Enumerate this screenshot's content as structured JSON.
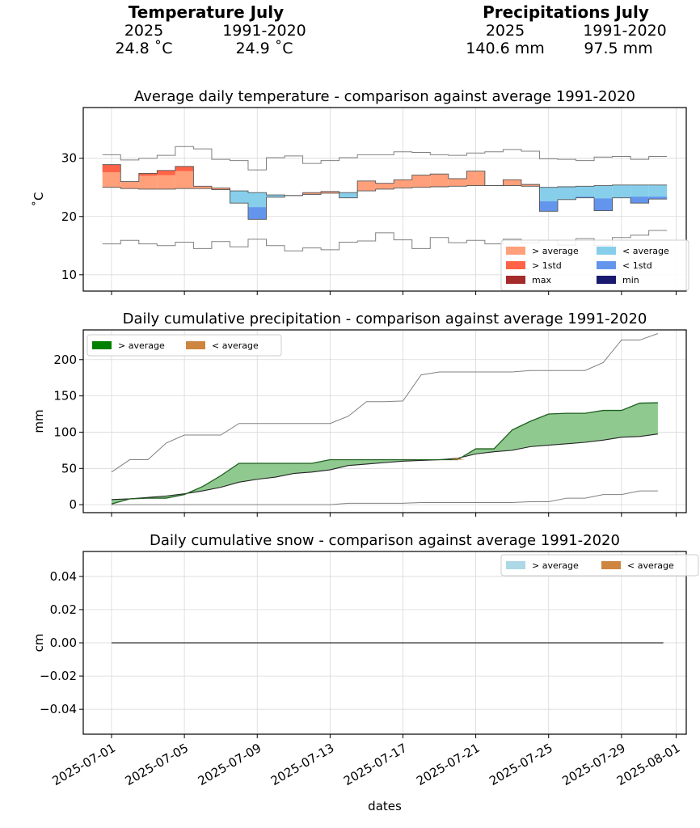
{
  "summary": {
    "temperature": {
      "title": "Temperature July",
      "col1_label": "2025",
      "col2_label": "1991-2020",
      "col1_value": "24.8 ˚C",
      "col2_value": "24.9 ˚C"
    },
    "precipitation": {
      "title": "Precipitations July",
      "col1_label": "2025",
      "col2_label": "1991-2020",
      "col1_value": "140.6 mm",
      "col2_value": "97.5 mm"
    }
  },
  "colors": {
    "above_avg_temp": "#FFA07A",
    "above_1std_temp": "#FF6347",
    "max_temp": "#A52A2A",
    "below_avg_temp": "#87CEEB",
    "below_1std_temp": "#6495ED",
    "min_temp": "#191970",
    "precip_above": "#008000",
    "precip_below": "#CD853F",
    "snow_above": "#ADD8E6",
    "snow_below": "#CD853F",
    "stat_line": "#808080"
  },
  "x_axis": {
    "xlabel": "dates",
    "tick_labels": [
      "2025-07-01",
      "2025-07-05",
      "2025-07-09",
      "2025-07-13",
      "2025-07-17",
      "2025-07-21",
      "2025-07-25",
      "2025-07-29",
      "2025-08-01"
    ]
  },
  "chart_data": [
    {
      "type": "area",
      "title": "Average daily temperature - comparison against average 1991-2020",
      "ylabel": "˚C",
      "ylim": [
        7.2,
        38.7
      ],
      "yticks": [
        10,
        20,
        30
      ],
      "grid": true,
      "legend_placement": "lower-right",
      "legend": [
        {
          "label": "> average",
          "color_key": "above_avg_temp"
        },
        {
          "label": "< average",
          "color_key": "below_avg_temp"
        },
        {
          "label": "> 1std",
          "color_key": "above_1std_temp"
        },
        {
          "label": "< 1std",
          "color_key": "below_1std_temp"
        },
        {
          "label": "max",
          "color_key": "max_temp"
        },
        {
          "label": "min",
          "color_key": "min_temp"
        }
      ],
      "x": [
        "2025-07-01",
        "2025-07-02",
        "2025-07-03",
        "2025-07-04",
        "2025-07-05",
        "2025-07-06",
        "2025-07-07",
        "2025-07-08",
        "2025-07-09",
        "2025-07-10",
        "2025-07-11",
        "2025-07-12",
        "2025-07-13",
        "2025-07-14",
        "2025-07-15",
        "2025-07-16",
        "2025-07-17",
        "2025-07-18",
        "2025-07-19",
        "2025-07-20",
        "2025-07-21",
        "2025-07-22",
        "2025-07-23",
        "2025-07-24",
        "2025-07-25",
        "2025-07-26",
        "2025-07-27",
        "2025-07-28",
        "2025-07-29",
        "2025-07-30",
        "2025-07-31"
      ],
      "series": [
        {
          "name": "temp_2025",
          "values": [
            28.9,
            26.0,
            27.4,
            27.9,
            28.6,
            25.2,
            24.9,
            22.3,
            19.5,
            23.3,
            23.6,
            24.1,
            24.3,
            23.2,
            26.1,
            25.7,
            26.3,
            27.1,
            27.3,
            26.5,
            27.8,
            25.3,
            26.3,
            25.5,
            20.9,
            22.9,
            23.2,
            21.0,
            23.2,
            22.3,
            23.0
          ],
          "above_1std": [
            27.6,
            null,
            27.0,
            27.1,
            27.8,
            null,
            null,
            null,
            21.6,
            null,
            null,
            null,
            null,
            null,
            null,
            null,
            null,
            null,
            null,
            null,
            null,
            null,
            null,
            null,
            22.6,
            null,
            23.4,
            23.1,
            null,
            23.4,
            23.4
          ]
        },
        {
          "name": "avg_1991_2020",
          "values": [
            25.0,
            24.8,
            24.7,
            24.7,
            24.8,
            24.8,
            24.6,
            24.4,
            24.1,
            23.7,
            23.6,
            23.8,
            24.0,
            24.1,
            24.4,
            24.7,
            24.9,
            25.0,
            25.1,
            25.2,
            25.3,
            25.3,
            25.3,
            25.2,
            25.0,
            25.1,
            25.2,
            25.3,
            25.4,
            25.4,
            25.4
          ]
        },
        {
          "name": "max_1991_2020",
          "values": [
            30.6,
            29.7,
            30.0,
            30.5,
            32.0,
            31.6,
            29.8,
            29.6,
            28.0,
            30.1,
            30.4,
            29.1,
            29.6,
            30.1,
            30.6,
            30.6,
            31.1,
            31.0,
            30.6,
            30.5,
            30.9,
            31.1,
            31.5,
            31.2,
            29.9,
            29.8,
            29.6,
            30.2,
            30.3,
            29.8,
            30.3
          ]
        },
        {
          "name": "min_1991_2020",
          "values": [
            15.3,
            15.9,
            15.3,
            15.0,
            15.6,
            14.5,
            15.7,
            14.8,
            16.1,
            15.0,
            14.1,
            14.6,
            14.3,
            15.6,
            15.8,
            17.2,
            16.0,
            14.5,
            16.4,
            15.5,
            15.9,
            15.3,
            16.1,
            15.5,
            15.9,
            15.1,
            16.2,
            15.0,
            16.4,
            16.8,
            17.6
          ]
        }
      ]
    },
    {
      "type": "area",
      "title": "Daily cumulative precipitation - comparison against average 1991-2020",
      "ylabel": "mm",
      "ylim": [
        -11,
        241
      ],
      "yticks": [
        0,
        50,
        100,
        150,
        200
      ],
      "grid": true,
      "legend_placement": "top-left",
      "legend": [
        {
          "label": "> average",
          "color_key": "precip_above"
        },
        {
          "label": "< average",
          "color_key": "precip_below"
        }
      ],
      "x": [
        "2025-07-01",
        "2025-07-02",
        "2025-07-03",
        "2025-07-04",
        "2025-07-05",
        "2025-07-06",
        "2025-07-07",
        "2025-07-08",
        "2025-07-09",
        "2025-07-10",
        "2025-07-11",
        "2025-07-12",
        "2025-07-13",
        "2025-07-14",
        "2025-07-15",
        "2025-07-16",
        "2025-07-17",
        "2025-07-18",
        "2025-07-19",
        "2025-07-20",
        "2025-07-21",
        "2025-07-22",
        "2025-07-23",
        "2025-07-24",
        "2025-07-25",
        "2025-07-26",
        "2025-07-27",
        "2025-07-28",
        "2025-07-29",
        "2025-07-30",
        "2025-07-31"
      ],
      "series": [
        {
          "name": "cum_2025",
          "values": [
            1,
            8,
            9,
            9,
            14,
            25,
            40,
            57,
            57,
            57,
            57,
            57,
            62,
            62,
            62,
            62,
            62,
            62,
            62,
            62,
            77,
            77,
            103,
            115,
            125,
            126,
            126,
            130,
            130,
            140,
            140.6
          ]
        },
        {
          "name": "cum_avg_1991_2020",
          "values": [
            7,
            8,
            10,
            12,
            15,
            19,
            24,
            31,
            35,
            38,
            43,
            45,
            48,
            54,
            56,
            58,
            60,
            61,
            62,
            64,
            70,
            73,
            75,
            80,
            82,
            84,
            86,
            89,
            93,
            94,
            97.5
          ]
        },
        {
          "name": "cum_max_1991_2020",
          "values": [
            45,
            62,
            62,
            85,
            96,
            96,
            96,
            112,
            112,
            112,
            112,
            112,
            112,
            122,
            142,
            142,
            143,
            179,
            183,
            183,
            183,
            183,
            183,
            185,
            185,
            185,
            185,
            196,
            227,
            227,
            236
          ]
        },
        {
          "name": "cum_min_1991_2020",
          "values": [
            0,
            0,
            0,
            0,
            0,
            0,
            0,
            0,
            0,
            0,
            0,
            0,
            0,
            2,
            2,
            2,
            2,
            3,
            3,
            3,
            3,
            3,
            3,
            4,
            4,
            9,
            9,
            14,
            14,
            19,
            19
          ]
        }
      ]
    },
    {
      "type": "area",
      "title": "Daily cumulative snow - comparison against average 1991-2020",
      "ylabel": "cm",
      "ylim": [
        -0.055,
        0.055
      ],
      "yticks": [
        -0.04,
        -0.02,
        0.0,
        0.02,
        0.04
      ],
      "ytick_labels": [
        "−0.04",
        "−0.02",
        "0.00",
        "0.02",
        "0.04"
      ],
      "grid": true,
      "legend_placement": "top-right",
      "legend": [
        {
          "label": "> average",
          "color_key": "snow_above"
        },
        {
          "label": "< average",
          "color_key": "snow_below"
        }
      ],
      "x": [
        "2025-07-01",
        "2025-07-31"
      ],
      "series": [
        {
          "name": "cum_2025",
          "values": [
            0,
            0
          ]
        }
      ]
    }
  ]
}
